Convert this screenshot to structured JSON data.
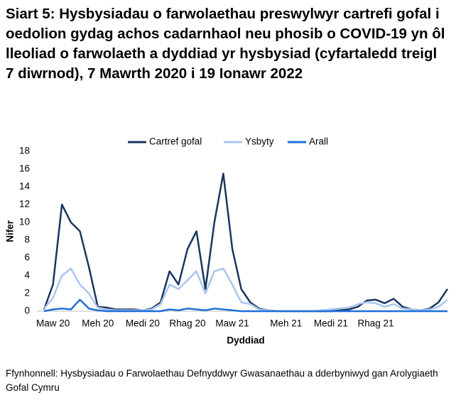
{
  "chart_data": {
    "type": "line",
    "title": "Siart 5: Hysbysiadau o farwolaethau preswylwyr cartrefi gofal i oedolion gydag achos cadarnhaol neu phosib o COVID-19 yn ôl lleoliad o farwolaeth a dyddiad yr hysbysiad (cyfartaledd treigl 7 diwrnod), 7 Mawrth 2020 i 19 Ionawr 2022",
    "x_label": "Dyddiad",
    "y_label": "Nifer",
    "source": "Ffynhonnell: Hysbysiadau o Farwolaethau Defnyddwyr Gwasanaethau a dderbyniwyd gan Arolygiaeth Gofal Cymru",
    "categories": [
      null,
      "Maw 20",
      null,
      null,
      null,
      null,
      "Meh 20",
      null,
      null,
      null,
      null,
      "Medi 20",
      null,
      null,
      null,
      null,
      "Rhag 20",
      null,
      null,
      null,
      null,
      "Maw 21",
      null,
      null,
      null,
      null,
      null,
      "Meh 21",
      null,
      null,
      null,
      null,
      "Medi 21",
      null,
      null,
      null,
      null,
      "Rhag 21",
      null,
      null,
      null,
      null,
      null,
      null,
      null,
      null
    ],
    "series": [
      {
        "name": "Cartref gofal",
        "color": "#1b355f",
        "values": [
          0.2,
          3,
          12,
          10,
          9,
          5,
          0.5,
          0.4,
          0.2,
          0.2,
          0.2,
          0.1,
          0.3,
          1,
          4.5,
          3,
          7,
          9,
          2.5,
          10,
          15.5,
          7,
          2.5,
          1,
          0.3,
          0.1,
          0,
          0,
          0,
          0,
          0,
          0,
          0,
          0.1,
          0.2,
          0.5,
          1.2,
          1.3,
          0.9,
          1.4,
          0.5,
          0.2,
          0.1,
          0.3,
          1,
          2.5
        ]
      },
      {
        "name": "Ysbyty",
        "color": "#a8c6ee",
        "values": [
          0.3,
          1.5,
          4,
          4.8,
          3,
          2,
          0.4,
          0.2,
          0.1,
          0.1,
          0.1,
          0.1,
          0.2,
          0.8,
          3,
          2.5,
          3.5,
          4.5,
          2,
          4.5,
          4.8,
          3,
          1,
          0.8,
          0.2,
          0.1,
          0,
          0,
          0,
          0,
          0,
          0.1,
          0.2,
          0.3,
          0.4,
          0.8,
          1,
          0.9,
          0.5,
          0.8,
          0.3,
          0.2,
          0.1,
          0.2,
          0.5,
          1.3
        ]
      },
      {
        "name": "Arall",
        "color": "#1f6fd8",
        "values": [
          0,
          0.2,
          0.3,
          0.2,
          1.3,
          0.3,
          0.1,
          0,
          0,
          0,
          0,
          0,
          0,
          0,
          0.2,
          0.1,
          0.3,
          0.2,
          0.1,
          0.3,
          0.2,
          0.1,
          0,
          0,
          0,
          0,
          0,
          0,
          0,
          0,
          0,
          0,
          0,
          0,
          0,
          0,
          0,
          0,
          0,
          0,
          0,
          0,
          0,
          0,
          0,
          0
        ]
      }
    ],
    "ylim": [
      0,
      18
    ],
    "yticks": [
      0,
      2,
      4,
      6,
      8,
      10,
      12,
      14,
      16,
      18
    ],
    "grid": false,
    "legend": "top"
  }
}
